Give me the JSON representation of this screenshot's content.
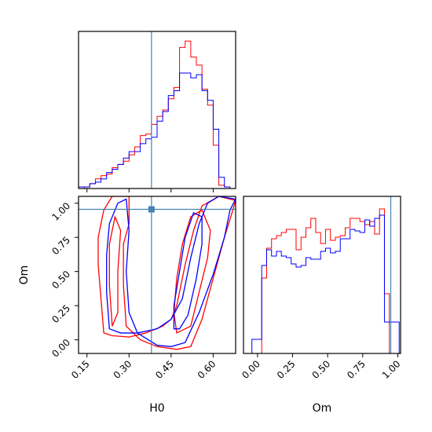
{
  "chart_data": [
    {
      "panel": "H0 marginal",
      "type": "histogram-step",
      "xlim": [
        0.12,
        0.68
      ],
      "bin_edges": [
        0.12,
        0.14,
        0.16,
        0.18,
        0.2,
        0.22,
        0.24,
        0.26,
        0.28,
        0.3,
        0.32,
        0.34,
        0.36,
        0.38,
        0.4,
        0.42,
        0.44,
        0.46,
        0.48,
        0.5,
        0.52,
        0.54,
        0.56,
        0.58,
        0.6,
        0.62,
        0.64,
        0.66,
        0.68
      ],
      "series": [
        {
          "color": "#ff0000",
          "values": [
            0,
            1,
            3,
            6,
            8,
            9,
            13,
            15,
            17,
            21,
            26,
            33,
            34,
            40,
            45,
            49,
            56,
            63,
            88,
            92,
            82,
            77,
            62,
            52,
            27,
            2,
            1,
            0
          ]
        },
        {
          "color": "#0000ff",
          "values": [
            1,
            1,
            3,
            4,
            6,
            10,
            12,
            15,
            19,
            23,
            23,
            28,
            31,
            32,
            42,
            48,
            58,
            61,
            72,
            72,
            69,
            71,
            61,
            55,
            37,
            7,
            1,
            0
          ]
        }
      ],
      "truth_line": 0.38,
      "xticks": [
        "0.15",
        "0.30",
        "0.45",
        "0.60"
      ]
    },
    {
      "panel": "Om marginal",
      "type": "histogram-step",
      "xlim": [
        -0.1,
        1.02
      ],
      "bin_edges": [
        -0.04,
        -0.005,
        0.03,
        0.065,
        0.1,
        0.135,
        0.17,
        0.205,
        0.24,
        0.275,
        0.31,
        0.345,
        0.38,
        0.415,
        0.45,
        0.485,
        0.52,
        0.555,
        0.59,
        0.625,
        0.66,
        0.695,
        0.73,
        0.765,
        0.8,
        0.835,
        0.87,
        0.905,
        0.94,
        0.975,
        1.01
      ],
      "series": [
        {
          "color": "#ff0000",
          "values": [
            0,
            0,
            48,
            67,
            73,
            75,
            77,
            79,
            79,
            66,
            74,
            80,
            86,
            77,
            70,
            79,
            72,
            74,
            75,
            80,
            86,
            86,
            84,
            82,
            84,
            76,
            92,
            38,
            0,
            0
          ]
        },
        {
          "color": "#0000ff",
          "values": [
            9,
            9,
            56,
            66,
            62,
            65,
            62,
            61,
            57,
            55,
            56,
            61,
            60,
            60,
            65,
            67,
            64,
            65,
            73,
            73,
            79,
            78,
            77,
            85,
            81,
            86,
            88,
            20,
            20,
            20
          ]
        }
      ],
      "truth_line": 0.95,
      "xticks": [
        "0.00",
        "0.25",
        "0.50",
        "0.75",
        "1.00"
      ]
    },
    {
      "panel": "H0-Om joint",
      "type": "contour",
      "xlabel": "H0",
      "ylabel": "Om",
      "xlim": [
        0.12,
        0.68
      ],
      "ylim": [
        -0.1,
        1.05
      ],
      "xticks": [
        "0.15",
        "0.30",
        "0.45",
        "0.60"
      ],
      "yticks": [
        "0.00",
        "0.25",
        "0.50",
        "0.75",
        "1.00"
      ],
      "truth_point": [
        0.38,
        0.955
      ],
      "contours": [
        {
          "color": "#ff0000",
          "level": "outer",
          "points": [
            [
              0.21,
              0.05
            ],
            [
              0.2,
              0.3
            ],
            [
              0.19,
              0.55
            ],
            [
              0.19,
              0.75
            ],
            [
              0.21,
              0.95
            ],
            [
              0.24,
              1.05
            ],
            [
              0.3,
              1.05
            ],
            [
              0.3,
              0.85
            ],
            [
              0.28,
              0.7
            ],
            [
              0.28,
              0.4
            ],
            [
              0.29,
              0.1
            ],
            [
              0.34,
              0.0
            ],
            [
              0.4,
              -0.05
            ],
            [
              0.47,
              -0.07
            ],
            [
              0.52,
              -0.05
            ],
            [
              0.56,
              0.15
            ],
            [
              0.6,
              0.45
            ],
            [
              0.64,
              0.75
            ],
            [
              0.67,
              0.95
            ],
            [
              0.68,
              1.02
            ],
            [
              0.62,
              1.05
            ],
            [
              0.56,
              0.98
            ],
            [
              0.53,
              0.8
            ],
            [
              0.5,
              0.55
            ],
            [
              0.47,
              0.25
            ],
            [
              0.45,
              0.15
            ],
            [
              0.42,
              0.1
            ],
            [
              0.36,
              0.05
            ],
            [
              0.3,
              0.02
            ],
            [
              0.24,
              0.03
            ],
            [
              0.21,
              0.05
            ]
          ]
        },
        {
          "color": "#ff0000",
          "level": "inner",
          "points": [
            [
              0.24,
              0.1
            ],
            [
              0.23,
              0.4
            ],
            [
              0.23,
              0.7
            ],
            [
              0.25,
              0.9
            ],
            [
              0.27,
              0.8
            ],
            [
              0.26,
              0.5
            ],
            [
              0.26,
              0.2
            ],
            [
              0.24,
              0.1
            ]
          ]
        },
        {
          "color": "#ff0000",
          "level": "inner",
          "points": [
            [
              0.47,
              0.05
            ],
            [
              0.46,
              0.2
            ],
            [
              0.47,
              0.45
            ],
            [
              0.49,
              0.7
            ],
            [
              0.52,
              0.9
            ],
            [
              0.56,
              0.95
            ],
            [
              0.59,
              0.8
            ],
            [
              0.58,
              0.6
            ],
            [
              0.55,
              0.35
            ],
            [
              0.52,
              0.1
            ],
            [
              0.47,
              0.05
            ]
          ]
        },
        {
          "color": "#0000ff",
          "level": "outer",
          "points": [
            [
              0.23,
              0.08
            ],
            [
              0.22,
              0.35
            ],
            [
              0.22,
              0.62
            ],
            [
              0.23,
              0.85
            ],
            [
              0.26,
              1.0
            ],
            [
              0.29,
              1.03
            ],
            [
              0.3,
              0.8
            ],
            [
              0.29,
              0.5
            ],
            [
              0.3,
              0.2
            ],
            [
              0.33,
              0.05
            ],
            [
              0.4,
              -0.04
            ],
            [
              0.45,
              -0.05
            ],
            [
              0.5,
              -0.02
            ],
            [
              0.55,
              0.2
            ],
            [
              0.6,
              0.48
            ],
            [
              0.64,
              0.75
            ],
            [
              0.66,
              0.95
            ],
            [
              0.68,
              1.03
            ],
            [
              0.62,
              1.05
            ],
            [
              0.58,
              1.0
            ],
            [
              0.55,
              0.85
            ],
            [
              0.52,
              0.6
            ],
            [
              0.49,
              0.3
            ],
            [
              0.45,
              0.15
            ],
            [
              0.4,
              0.08
            ],
            [
              0.33,
              0.05
            ],
            [
              0.27,
              0.05
            ],
            [
              0.23,
              0.08
            ]
          ]
        },
        {
          "color": "#0000ff",
          "level": "inner",
          "points": [
            [
              0.46,
              0.08
            ],
            [
              0.46,
              0.25
            ],
            [
              0.48,
              0.5
            ],
            [
              0.5,
              0.75
            ],
            [
              0.53,
              0.93
            ],
            [
              0.56,
              0.9
            ],
            [
              0.56,
              0.7
            ],
            [
              0.54,
              0.45
            ],
            [
              0.51,
              0.18
            ],
            [
              0.48,
              0.08
            ],
            [
              0.46,
              0.08
            ]
          ]
        }
      ]
    }
  ],
  "labels": {
    "xlabel_h0": "H0",
    "xlabel_om": "Om",
    "ylabel_om": "Om"
  }
}
